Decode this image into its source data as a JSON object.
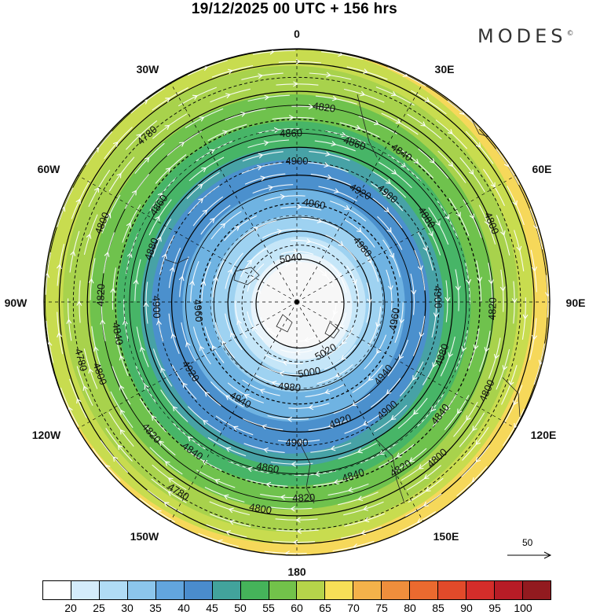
{
  "title": "19/12/2025  00 UTC  + 156 hrs",
  "logo": "MODES",
  "logo_mark": "©",
  "longitude_labels": {
    "top": "0",
    "e30": "30E",
    "e60": "60E",
    "e90": "90E",
    "e120": "120E",
    "e150": "150E",
    "bottom": "180",
    "w150": "150W",
    "w120": "120W",
    "w90": "90W",
    "w60": "60W",
    "w30": "30W"
  },
  "wind_speed_bands": [
    {
      "min": 20,
      "color": "#f0f8fd"
    },
    {
      "min": 25,
      "color": "#c5e6f8"
    },
    {
      "min": 30,
      "color": "#9ed2f1"
    },
    {
      "min": 35,
      "color": "#6fb3e2"
    },
    {
      "min": 40,
      "color": "#4b90cd"
    },
    {
      "min": 45,
      "color": "#47a2a6"
    },
    {
      "min": 50,
      "color": "#47b567"
    },
    {
      "min": 55,
      "color": "#6fc24d"
    },
    {
      "min": 60,
      "color": "#a8d24c"
    },
    {
      "min": 65,
      "color": "#c8dc4f"
    },
    {
      "min": 70,
      "color": "#f6d85a"
    },
    {
      "min": 75,
      "color": "#f2a94a"
    }
  ],
  "geopotential_contours": [
    {
      "value": "5040",
      "label_angle": 352
    },
    {
      "value": "5020",
      "label_angle": 150
    },
    {
      "value": "5000",
      "label_angle": 170
    },
    {
      "value": "4980",
      "label_angle": 50
    },
    {
      "value": "4980",
      "label_angle": 185
    },
    {
      "value": "4960",
      "label_angle": 100
    },
    {
      "value": "4960",
      "label_angle": 265
    },
    {
      "value": "4960",
      "label_angle": 10
    },
    {
      "value": "4940",
      "label_angle": 130
    },
    {
      "value": "4940",
      "label_angle": 210
    },
    {
      "value": "4920",
      "label_angle": 30
    },
    {
      "value": "4920",
      "label_angle": 237
    },
    {
      "value": "4920",
      "label_angle": 160
    },
    {
      "value": "4900",
      "label_angle": 88
    },
    {
      "value": "4900",
      "label_angle": 268
    },
    {
      "value": "4900",
      "label_angle": 0
    },
    {
      "value": "4900",
      "label_angle": 180
    },
    {
      "value": "4900",
      "label_angle": 140
    },
    {
      "value": "4880",
      "label_angle": 110
    },
    {
      "value": "4880",
      "label_angle": 57
    },
    {
      "value": "4880",
      "label_angle": 290
    },
    {
      "value": "4860",
      "label_angle": 358
    },
    {
      "value": "4860",
      "label_angle": 20
    },
    {
      "value": "4860",
      "label_angle": 190
    },
    {
      "value": "4860",
      "label_angle": 305
    },
    {
      "value": "4840",
      "label_angle": 162
    },
    {
      "value": "4840",
      "label_angle": 35
    },
    {
      "value": "4840",
      "label_angle": 260
    },
    {
      "value": "4840",
      "label_angle": 215
    },
    {
      "value": "4820",
      "label_angle": 8
    },
    {
      "value": "4820",
      "label_angle": 178
    },
    {
      "value": "4820",
      "label_angle": 272
    },
    {
      "value": "4820",
      "label_angle": 228
    },
    {
      "value": "4820",
      "label_angle": 148
    },
    {
      "value": "4800",
      "label_angle": 292
    },
    {
      "value": "4800",
      "label_angle": 250
    },
    {
      "value": "4800",
      "label_angle": 190
    },
    {
      "value": "4800",
      "label_angle": 115
    },
    {
      "value": "4800",
      "label_angle": 68
    },
    {
      "value": "4780",
      "label_angle": 318
    },
    {
      "value": "4780",
      "label_angle": 255
    },
    {
      "value": "4780",
      "label_angle": 212
    },
    {
      "value": "4820",
      "label_angle": 92
    },
    {
      "value": "4840",
      "label_angle": 128
    },
    {
      "value": "4800",
      "label_angle": 138
    },
    {
      "value": "4900",
      "label_angle": 40
    }
  ],
  "reference_vector": "50",
  "colorbar": {
    "colors": [
      "#ffffff",
      "#d4ecfb",
      "#b0dcf5",
      "#8cc6ec",
      "#62a5de",
      "#4a8ccd",
      "#42a39c",
      "#45b35a",
      "#72c24a",
      "#b6d44a",
      "#f7df57",
      "#f4b24a",
      "#ef8e3c",
      "#eb6a2f",
      "#e24a2a",
      "#d42d2a",
      "#b71c26",
      "#921a1f"
    ],
    "ticks": [
      "20",
      "25",
      "30",
      "35",
      "40",
      "45",
      "50",
      "55",
      "60",
      "65",
      "70",
      "75",
      "80",
      "85",
      "90",
      "95",
      "100"
    ]
  }
}
